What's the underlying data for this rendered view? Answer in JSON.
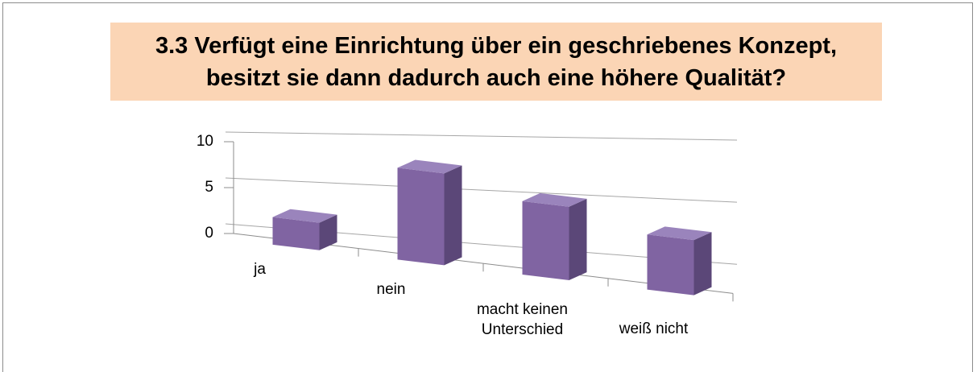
{
  "chart_data": {
    "type": "bar3d",
    "title": "3.3 Verfügt eine Einrichtung über ein geschriebenes Konzept, besitzt sie dann dadurch auch eine höhere Qualität?",
    "categories": [
      "ja",
      "nein",
      "macht keinen Unterschied",
      "weiß nicht"
    ],
    "values": [
      3,
      10,
      8,
      6
    ],
    "color": "#8064a2",
    "ylim": [
      0,
      10
    ],
    "yticks": [
      0,
      5,
      10
    ],
    "grid": true
  }
}
